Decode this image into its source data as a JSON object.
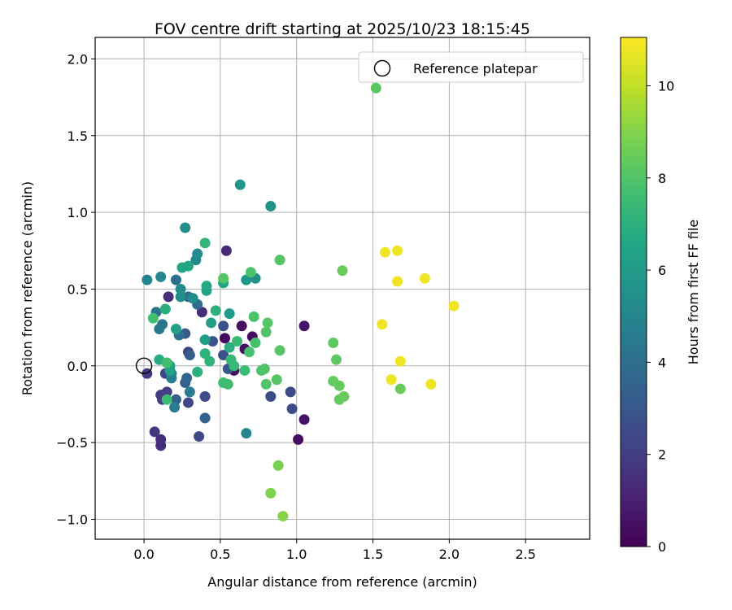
{
  "chart_data": {
    "type": "scatter",
    "title": "FOV centre drift starting at 2025/10/23 18:15:45",
    "xlabel": "Angular distance from reference (arcmin)",
    "ylabel": "Rotation from reference (arcmin)",
    "xlim": [
      -0.32,
      2.92
    ],
    "ylim": [
      -1.13,
      2.14
    ],
    "xticks": [
      0.0,
      0.5,
      1.0,
      1.5,
      2.0,
      2.5
    ],
    "xtick_labels": [
      "0.0",
      "0.5",
      "1.0",
      "1.5",
      "2.0",
      "2.5"
    ],
    "yticks": [
      -1.0,
      -0.5,
      0.0,
      0.5,
      1.0,
      1.5,
      2.0
    ],
    "ytick_labels": [
      "−1.0",
      "−0.5",
      "0.0",
      "0.5",
      "1.0",
      "1.5",
      "2.0"
    ],
    "grid": true,
    "legend": {
      "label": "Reference platepar",
      "position": "top-right"
    },
    "reference_point": {
      "x": 0.0,
      "y": 0.0
    },
    "colorbar": {
      "label": "Hours from first FF file",
      "min": 0,
      "max": 11.05,
      "ticks": [
        0,
        2,
        4,
        6,
        8,
        10
      ],
      "tick_labels": [
        "0",
        "2",
        "4",
        "6",
        "8",
        "10"
      ],
      "colormap": "viridis"
    },
    "points": [
      {
        "x": 0.53,
        "y": 0.18,
        "h": 0.3
      },
      {
        "x": 0.71,
        "y": 0.19,
        "h": 0.3
      },
      {
        "x": 0.64,
        "y": 0.26,
        "h": 0.4
      },
      {
        "x": 0.59,
        "y": -0.03,
        "h": 0.5
      },
      {
        "x": 0.66,
        "y": 0.11,
        "h": 0.5
      },
      {
        "x": 1.01,
        "y": -0.48,
        "h": 0.4
      },
      {
        "x": 1.05,
        "y": -0.35,
        "h": 0.6
      },
      {
        "x": 1.05,
        "y": 0.26,
        "h": 0.6
      },
      {
        "x": 0.54,
        "y": 0.75,
        "h": 1.3
      },
      {
        "x": 0.16,
        "y": 0.45,
        "h": 1.5
      },
      {
        "x": 0.38,
        "y": 0.35,
        "h": 1.4
      },
      {
        "x": 0.11,
        "y": -0.48,
        "h": 1.5
      },
      {
        "x": 0.11,
        "y": -0.52,
        "h": 1.5
      },
      {
        "x": 0.07,
        "y": -0.43,
        "h": 1.8
      },
      {
        "x": 0.02,
        "y": -0.05,
        "h": 1.8
      },
      {
        "x": 0.11,
        "y": -0.19,
        "h": 1.9
      },
      {
        "x": 0.12,
        "y": -0.22,
        "h": 2.0
      },
      {
        "x": 0.15,
        "y": -0.17,
        "h": 2.1
      },
      {
        "x": 0.14,
        "y": -0.05,
        "h": 2.2
      },
      {
        "x": 0.29,
        "y": 0.09,
        "h": 2.3
      },
      {
        "x": 0.29,
        "y": -0.24,
        "h": 2.3
      },
      {
        "x": 0.36,
        "y": -0.46,
        "h": 2.4
      },
      {
        "x": 0.4,
        "y": -0.2,
        "h": 2.5
      },
      {
        "x": 0.83,
        "y": -0.2,
        "h": 2.5
      },
      {
        "x": 0.96,
        "y": -0.17,
        "h": 2.5
      },
      {
        "x": 0.97,
        "y": -0.28,
        "h": 2.6
      },
      {
        "x": 0.52,
        "y": 0.07,
        "h": 2.7
      },
      {
        "x": 0.45,
        "y": 0.16,
        "h": 2.8
      },
      {
        "x": 0.52,
        "y": 0.26,
        "h": 2.8
      },
      {
        "x": 0.55,
        "y": -0.02,
        "h": 3.0
      },
      {
        "x": 0.27,
        "y": 0.21,
        "h": 3.1
      },
      {
        "x": 0.3,
        "y": 0.07,
        "h": 3.2
      },
      {
        "x": 0.27,
        "y": -0.11,
        "h": 3.3
      },
      {
        "x": 0.4,
        "y": -0.34,
        "h": 3.4
      },
      {
        "x": 0.21,
        "y": -0.22,
        "h": 3.5
      },
      {
        "x": 0.28,
        "y": -0.08,
        "h": 3.6
      },
      {
        "x": 0.29,
        "y": 0.45,
        "h": 3.7
      },
      {
        "x": 0.35,
        "y": 0.4,
        "h": 3.8
      },
      {
        "x": 0.21,
        "y": 0.56,
        "h": 4.0
      },
      {
        "x": 0.23,
        "y": 0.2,
        "h": 4.0
      },
      {
        "x": 0.08,
        "y": 0.35,
        "h": 4.2
      },
      {
        "x": 0.12,
        "y": 0.27,
        "h": 4.3
      },
      {
        "x": 0.1,
        "y": 0.24,
        "h": 4.4
      },
      {
        "x": 0.18,
        "y": -0.05,
        "h": 4.5
      },
      {
        "x": 0.2,
        "y": -0.27,
        "h": 4.6
      },
      {
        "x": 0.3,
        "y": -0.17,
        "h": 4.7
      },
      {
        "x": 0.18,
        "y": -0.08,
        "h": 4.8
      },
      {
        "x": 0.67,
        "y": -0.44,
        "h": 5.0
      },
      {
        "x": 0.02,
        "y": 0.56,
        "h": 5.0
      },
      {
        "x": 0.11,
        "y": 0.58,
        "h": 5.1
      },
      {
        "x": 0.34,
        "y": 0.69,
        "h": 5.2
      },
      {
        "x": 0.35,
        "y": 0.73,
        "h": 5.2
      },
      {
        "x": 0.27,
        "y": 0.9,
        "h": 5.3
      },
      {
        "x": 0.24,
        "y": 0.5,
        "h": 5.3
      },
      {
        "x": 0.24,
        "y": 0.45,
        "h": 5.4
      },
      {
        "x": 0.32,
        "y": 0.44,
        "h": 5.4
      },
      {
        "x": 0.73,
        "y": 0.57,
        "h": 5.5
      },
      {
        "x": 0.83,
        "y": 1.04,
        "h": 5.6
      },
      {
        "x": 0.63,
        "y": 1.18,
        "h": 5.7
      },
      {
        "x": 0.67,
        "y": 0.56,
        "h": 5.8
      },
      {
        "x": 0.56,
        "y": 0.34,
        "h": 6.0
      },
      {
        "x": 0.4,
        "y": 0.17,
        "h": 6.1
      },
      {
        "x": 0.44,
        "y": 0.28,
        "h": 6.1
      },
      {
        "x": 0.21,
        "y": 0.24,
        "h": 6.2
      },
      {
        "x": 0.17,
        "y": 0.0,
        "h": 6.3
      },
      {
        "x": 0.17,
        "y": -0.03,
        "h": 6.4
      },
      {
        "x": 0.41,
        "y": 0.49,
        "h": 6.4
      },
      {
        "x": 0.52,
        "y": 0.54,
        "h": 6.5
      },
      {
        "x": 0.25,
        "y": 0.64,
        "h": 6.5
      },
      {
        "x": 0.29,
        "y": 0.65,
        "h": 6.6
      },
      {
        "x": 0.41,
        "y": 0.52,
        "h": 6.7
      },
      {
        "x": 0.1,
        "y": 0.04,
        "h": 6.8
      },
      {
        "x": 0.14,
        "y": 0.37,
        "h": 6.9
      },
      {
        "x": 0.56,
        "y": 0.12,
        "h": 6.9
      },
      {
        "x": 0.47,
        "y": 0.36,
        "h": 7.0
      },
      {
        "x": 0.35,
        "y": -0.04,
        "h": 7.0
      },
      {
        "x": 0.4,
        "y": 0.08,
        "h": 7.1
      },
      {
        "x": 0.43,
        "y": 0.03,
        "h": 7.1
      },
      {
        "x": 0.4,
        "y": 0.8,
        "h": 7.2
      },
      {
        "x": 0.57,
        "y": 0.04,
        "h": 7.3
      },
      {
        "x": 0.59,
        "y": 0.0,
        "h": 7.4
      },
      {
        "x": 0.61,
        "y": 0.16,
        "h": 7.4
      },
      {
        "x": 0.66,
        "y": -0.03,
        "h": 7.5
      },
      {
        "x": 0.15,
        "y": -0.22,
        "h": 7.5
      },
      {
        "x": 0.52,
        "y": -0.11,
        "h": 7.6
      },
      {
        "x": 0.55,
        "y": -0.12,
        "h": 7.6
      },
      {
        "x": 0.06,
        "y": 0.31,
        "h": 7.7
      },
      {
        "x": 0.15,
        "y": 0.02,
        "h": 7.7
      },
      {
        "x": 0.69,
        "y": 0.09,
        "h": 7.8
      },
      {
        "x": 0.73,
        "y": 0.15,
        "h": 7.8
      },
      {
        "x": 0.72,
        "y": 0.32,
        "h": 7.9
      },
      {
        "x": 0.7,
        "y": 0.61,
        "h": 7.9
      },
      {
        "x": 0.77,
        "y": -0.03,
        "h": 7.9
      },
      {
        "x": 0.79,
        "y": -0.02,
        "h": 8.0
      },
      {
        "x": 0.8,
        "y": -0.12,
        "h": 8.0
      },
      {
        "x": 0.8,
        "y": 0.22,
        "h": 8.0
      },
      {
        "x": 0.81,
        "y": 0.28,
        "h": 8.1
      },
      {
        "x": 0.87,
        "y": -0.09,
        "h": 8.1
      },
      {
        "x": 0.89,
        "y": 0.69,
        "h": 8.1
      },
      {
        "x": 0.89,
        "y": 0.1,
        "h": 8.1
      },
      {
        "x": 0.52,
        "y": 0.57,
        "h": 8.1
      },
      {
        "x": 1.52,
        "y": 1.81,
        "h": 8.2
      },
      {
        "x": 1.24,
        "y": 0.15,
        "h": 8.3
      },
      {
        "x": 1.26,
        "y": 0.04,
        "h": 8.3
      },
      {
        "x": 1.24,
        "y": -0.1,
        "h": 8.4
      },
      {
        "x": 1.28,
        "y": -0.13,
        "h": 8.4
      },
      {
        "x": 1.28,
        "y": -0.22,
        "h": 8.4
      },
      {
        "x": 1.31,
        "y": -0.2,
        "h": 8.5
      },
      {
        "x": 1.3,
        "y": 0.62,
        "h": 8.5
      },
      {
        "x": 1.68,
        "y": -0.15,
        "h": 8.5
      },
      {
        "x": 0.88,
        "y": -0.65,
        "h": 8.8
      },
      {
        "x": 0.83,
        "y": -0.83,
        "h": 8.9
      },
      {
        "x": 0.91,
        "y": -0.98,
        "h": 9.0
      },
      {
        "x": 1.58,
        "y": 0.74,
        "h": 10.8
      },
      {
        "x": 1.66,
        "y": 0.75,
        "h": 10.8
      },
      {
        "x": 1.66,
        "y": 0.55,
        "h": 10.8
      },
      {
        "x": 1.84,
        "y": 0.57,
        "h": 10.8
      },
      {
        "x": 2.03,
        "y": 0.39,
        "h": 10.8
      },
      {
        "x": 1.56,
        "y": 0.27,
        "h": 10.8
      },
      {
        "x": 1.68,
        "y": 0.03,
        "h": 10.8
      },
      {
        "x": 1.62,
        "y": -0.09,
        "h": 10.8
      },
      {
        "x": 1.88,
        "y": -0.12,
        "h": 10.8
      }
    ]
  }
}
